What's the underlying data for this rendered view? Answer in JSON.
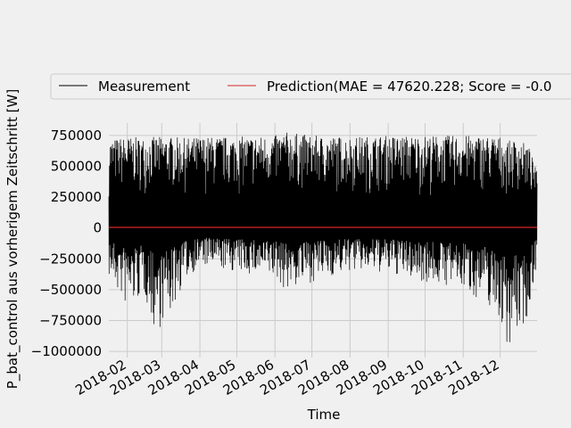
{
  "chart_data": {
    "type": "line",
    "style": "fivethirtyeight",
    "xlabel": "Time",
    "ylabel": "P_bat_control aus vorherigem Zeitschritt [W]",
    "x_range": [
      "2018-01-17",
      "2018-12-31"
    ],
    "ylim": [
      -1050000,
      850000
    ],
    "grid": true,
    "legend_position": "top",
    "x_ticks": [
      {
        "date": "2018-02-01",
        "label": "2018-02"
      },
      {
        "date": "2018-03-01",
        "label": "2018-03"
      },
      {
        "date": "2018-04-01",
        "label": "2018-04"
      },
      {
        "date": "2018-05-01",
        "label": "2018-05"
      },
      {
        "date": "2018-06-01",
        "label": "2018-06"
      },
      {
        "date": "2018-07-01",
        "label": "2018-07"
      },
      {
        "date": "2018-08-01",
        "label": "2018-08"
      },
      {
        "date": "2018-09-01",
        "label": "2018-09"
      },
      {
        "date": "2018-10-01",
        "label": "2018-10"
      },
      {
        "date": "2018-11-01",
        "label": "2018-11"
      },
      {
        "date": "2018-12-01",
        "label": "2018-12"
      }
    ],
    "y_ticks": [
      {
        "value": 750000,
        "label": "750000"
      },
      {
        "value": 500000,
        "label": "500000"
      },
      {
        "value": 250000,
        "label": "250000"
      },
      {
        "value": 0,
        "label": "0"
      },
      {
        "value": -250000,
        "label": "−250000"
      },
      {
        "value": -500000,
        "label": "−500000"
      },
      {
        "value": -750000,
        "label": "−750000"
      },
      {
        "value": -1000000,
        "label": "−1000000"
      }
    ],
    "series": [
      {
        "name": "Measurement",
        "color": "#000000",
        "envelope": [
          {
            "date": "2018-01-17",
            "max": 720000,
            "min": -400000
          },
          {
            "date": "2018-02-01",
            "max": 740000,
            "min": -670000
          },
          {
            "date": "2018-02-15",
            "max": 730000,
            "min": -550000
          },
          {
            "date": "2018-02-24",
            "max": 740000,
            "min": -870000
          },
          {
            "date": "2018-03-01",
            "max": 740000,
            "min": -780000
          },
          {
            "date": "2018-03-08",
            "max": 740000,
            "min": -710000
          },
          {
            "date": "2018-03-20",
            "max": 730000,
            "min": -420000
          },
          {
            "date": "2018-04-01",
            "max": 740000,
            "min": -310000
          },
          {
            "date": "2018-05-01",
            "max": 740000,
            "min": -360000
          },
          {
            "date": "2018-06-01",
            "max": 750000,
            "min": -420000
          },
          {
            "date": "2018-06-10",
            "max": 780000,
            "min": -510000
          },
          {
            "date": "2018-07-01",
            "max": 750000,
            "min": -440000
          },
          {
            "date": "2018-08-01",
            "max": 740000,
            "min": -350000
          },
          {
            "date": "2018-09-01",
            "max": 750000,
            "min": -370000
          },
          {
            "date": "2018-10-01",
            "max": 750000,
            "min": -440000
          },
          {
            "date": "2018-11-01",
            "max": 750000,
            "min": -500000
          },
          {
            "date": "2018-11-20",
            "max": 750000,
            "min": -620000
          },
          {
            "date": "2018-12-01",
            "max": 740000,
            "min": -750000
          },
          {
            "date": "2018-12-05",
            "max": 700000,
            "min": -970000
          },
          {
            "date": "2018-12-15",
            "max": 720000,
            "min": -870000
          },
          {
            "date": "2018-12-24",
            "max": 670000,
            "min": -740000
          },
          {
            "date": "2018-12-31",
            "max": 450000,
            "min": -260000
          }
        ]
      },
      {
        "name": "Prediction(MAE = 47620.228; Score = -0.0",
        "color": "#d62728",
        "constant_value": 5000
      }
    ]
  }
}
